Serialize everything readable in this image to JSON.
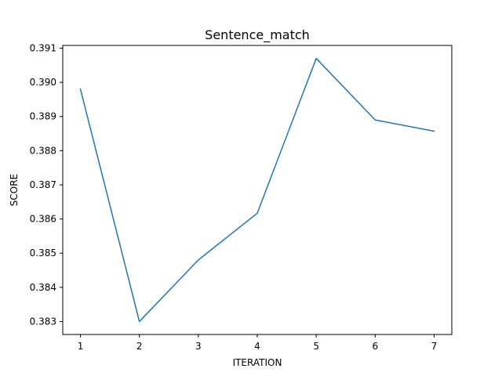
{
  "chart_data": {
    "type": "line",
    "title": "Sentence_match",
    "xlabel": "ITERATION",
    "ylabel": "SCORE",
    "x": [
      1,
      2,
      3,
      4,
      5,
      6,
      7
    ],
    "series": [
      {
        "values": [
          0.3898,
          0.383,
          0.3848,
          0.38617,
          0.3907,
          0.3889,
          0.38857
        ]
      }
    ],
    "xticks": [
      "1",
      "2",
      "3",
      "4",
      "5",
      "6",
      "7"
    ],
    "yticks": [
      "0.383",
      "0.384",
      "0.385",
      "0.386",
      "0.387",
      "0.388",
      "0.389",
      "0.390",
      "0.391"
    ],
    "xlim": [
      0.7,
      7.3
    ],
    "ylim": [
      0.38262,
      0.39108
    ],
    "grid": false,
    "line_color": "#1f77b4"
  }
}
